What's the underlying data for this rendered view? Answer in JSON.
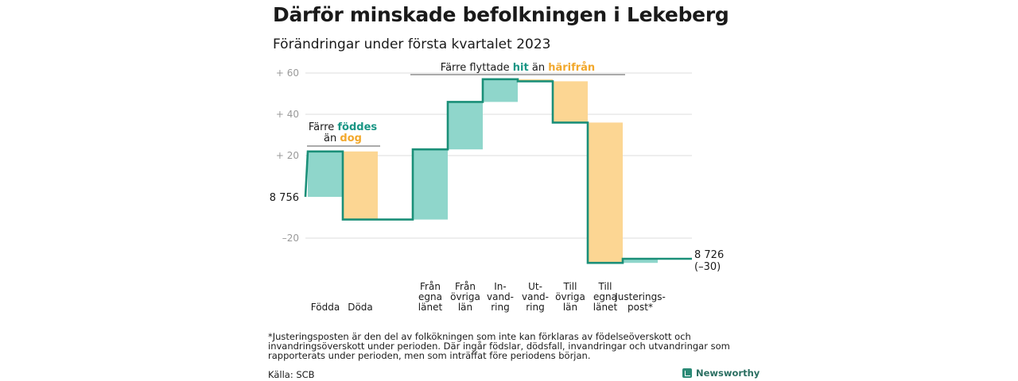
{
  "title": "Därför minskade befolkningen i Lekeberg",
  "subtitle": "Förändringar under första kvartalet 2023",
  "colors": {
    "increase": "#8fd6cb",
    "decrease": "#fcd693",
    "line": "#1a8f78",
    "teal_text": "#1a9685",
    "orange_text": "#f2a82c",
    "grid": "#dddddd"
  },
  "chart_data": {
    "type": "waterfall",
    "start_value": 8756,
    "start_label": "8 756",
    "end_value": 8726,
    "end_label": "8 726",
    "end_change_label": "(–30)",
    "yticks": [
      {
        "value": 60,
        "label": "+ 60"
      },
      {
        "value": 40,
        "label": "+ 40"
      },
      {
        "value": 20,
        "label": "+ 20"
      },
      {
        "value": -20,
        "label": "–20"
      }
    ],
    "ylim": [
      -30,
      65
    ],
    "steps": [
      {
        "label": [
          "Födda"
        ],
        "value": 22
      },
      {
        "label": [
          "Döda"
        ],
        "value": -33
      },
      {
        "label": [
          "Från",
          "egna",
          "länet"
        ],
        "value": 34
      },
      {
        "label": [
          "Från",
          "övriga",
          "län"
        ],
        "value": 23
      },
      {
        "label": [
          "In-",
          "vand-",
          "ring"
        ],
        "value": 11
      },
      {
        "label": [
          "Ut-",
          "vand-",
          "ring"
        ],
        "value": -1
      },
      {
        "label": [
          "Till",
          "övriga",
          "län"
        ],
        "value": -20
      },
      {
        "label": [
          "Till",
          "egna",
          "länet"
        ],
        "value": -68
      },
      {
        "label": [
          "Justerings-",
          "post*"
        ],
        "value": 2
      }
    ],
    "annotations": [
      {
        "parts": [
          {
            "text": "Färre ",
            "style": "plain"
          },
          {
            "text": "föddes",
            "style": "teal"
          }
        ]
      },
      {
        "parts": [
          {
            "text": "än ",
            "style": "plain"
          },
          {
            "text": "dog",
            "style": "orange"
          }
        ]
      },
      {
        "parts": [
          {
            "text": "Färre flyttade ",
            "style": "plain"
          },
          {
            "text": "hit",
            "style": "teal"
          },
          {
            "text": " än ",
            "style": "plain"
          },
          {
            "text": "härifrån",
            "style": "orange"
          }
        ]
      }
    ]
  },
  "footnote": "*Justeringsposten är den del av folkökningen som inte kan förklaras av födelseöverskott och invandringsöverskott under perioden. Där ingår födslar, dödsfall, invandringar och utvandringar som rapporterats under perioden, men som inträffat före periodens början.",
  "source": "Källa: SCB",
  "brand": "Newsworthy"
}
